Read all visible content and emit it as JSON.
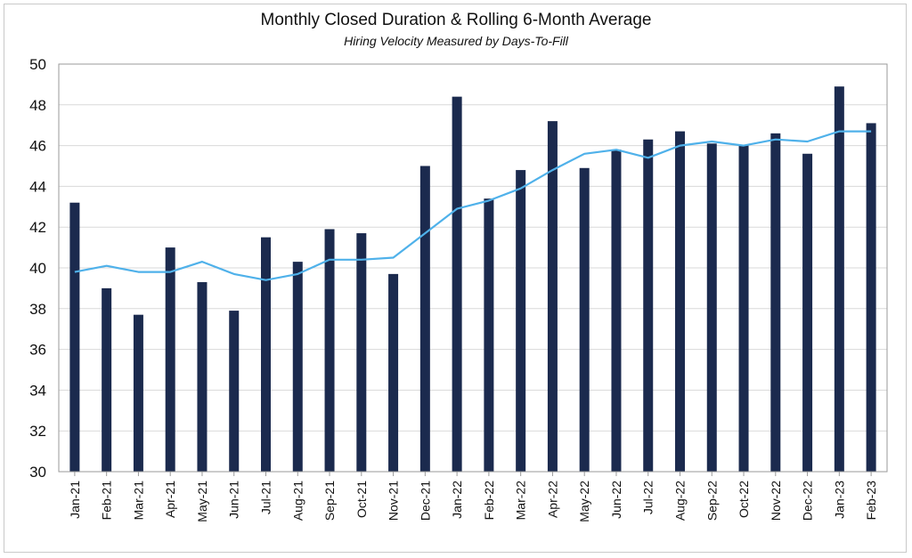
{
  "chart_data": {
    "type": "bar",
    "title": "Monthly Closed Duration & Rolling 6-Month Average",
    "subtitle": "Hiring Velocity Measured by Days-To-Fill",
    "xlabel": "",
    "ylabel": "",
    "ylim": [
      30,
      50
    ],
    "yticks": [
      "30",
      "32",
      "34",
      "36",
      "38",
      "40",
      "42",
      "44",
      "46",
      "48",
      "50"
    ],
    "grid": true,
    "categories": [
      "Jan-21",
      "Feb-21",
      "Mar-21",
      "Apr-21",
      "May-21",
      "Jun-21",
      "Jul-21",
      "Aug-21",
      "Sep-21",
      "Oct-21",
      "Nov-21",
      "Dec-21",
      "Jan-22",
      "Feb-22",
      "Mar-22",
      "Apr-22",
      "May-22",
      "Jun-22",
      "Jul-22",
      "Aug-22",
      "Sep-22",
      "Oct-22",
      "Nov-22",
      "Dec-22",
      "Jan-23",
      "Feb-23"
    ],
    "series": [
      {
        "type": "bar",
        "color": "#1b2a4e",
        "values": [
          43.2,
          39.0,
          37.7,
          41.0,
          39.3,
          37.9,
          41.5,
          40.3,
          41.9,
          41.7,
          39.7,
          45.0,
          48.4,
          43.4,
          44.8,
          47.2,
          44.9,
          45.8,
          46.3,
          46.7,
          46.1,
          46.0,
          46.6,
          45.6,
          48.9,
          47.1
        ]
      },
      {
        "type": "line",
        "color": "#4fb1ea",
        "values": [
          39.8,
          40.1,
          39.8,
          39.8,
          40.3,
          39.7,
          39.4,
          39.7,
          40.4,
          40.4,
          40.5,
          41.7,
          42.9,
          43.3,
          43.9,
          44.8,
          45.6,
          45.8,
          45.4,
          46.0,
          46.2,
          46.0,
          46.3,
          46.2,
          46.7,
          46.7
        ]
      }
    ]
  }
}
